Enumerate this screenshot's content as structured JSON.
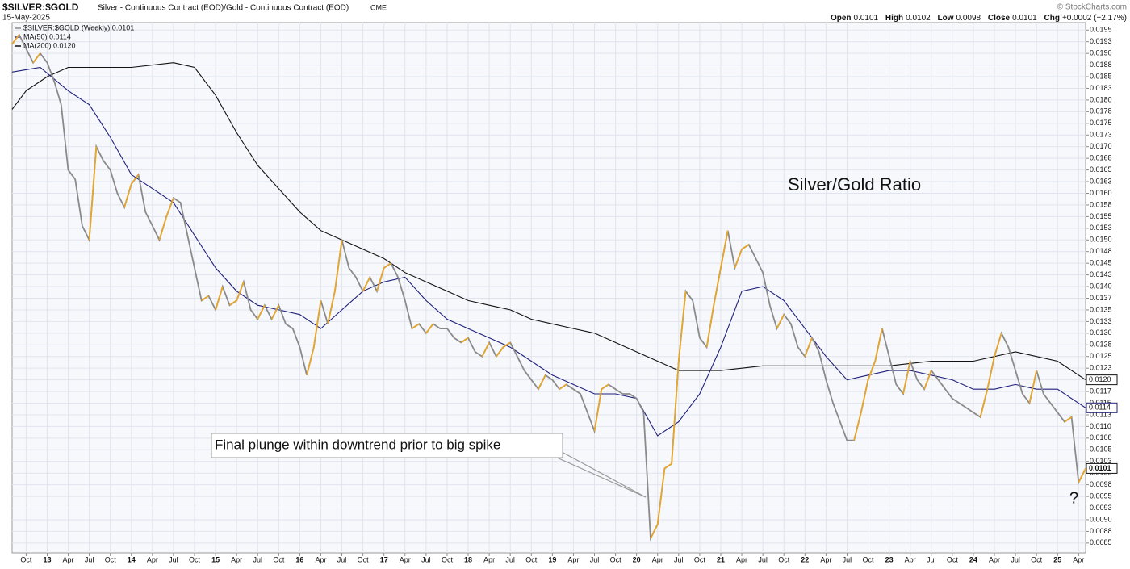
{
  "header": {
    "symbol": "$SILVER:$GOLD",
    "description": "Silver - Continuous Contract (EOD)/Gold - Continuous Contract (EOD)",
    "exchange": "CME",
    "date": "15-May-2025",
    "credit": "© StockCharts.com",
    "ohlc": [
      {
        "label": "Open",
        "value": "0.0101"
      },
      {
        "label": "High",
        "value": "0.0102"
      },
      {
        "label": "Low",
        "value": "0.0098"
      },
      {
        "label": "Close",
        "value": "0.0101"
      },
      {
        "label": "Chg",
        "value": "+0.0002 (+2.17%)"
      }
    ]
  },
  "chart_data": {
    "type": "line",
    "title": "Silver/Gold Ratio",
    "annotations": [
      "Final plunge within downtrend prior to big spike",
      "?"
    ],
    "xlim": [
      "2012-08",
      "2025-05"
    ],
    "ylim": [
      0.00829,
      0.01966
    ],
    "grid": true,
    "up_color": "#e8a628",
    "xticks": [
      {
        "value": "2012-10",
        "label": "Oct"
      },
      {
        "value": "2013-01",
        "label": "13"
      },
      {
        "value": "2013-04",
        "label": "Apr"
      },
      {
        "value": "2013-07",
        "label": "Jul"
      },
      {
        "value": "2013-10",
        "label": "Oct"
      },
      {
        "value": "2014-01",
        "label": "14"
      },
      {
        "value": "2014-04",
        "label": "Apr"
      },
      {
        "value": "2014-07",
        "label": "Jul"
      },
      {
        "value": "2014-10",
        "label": "Oct"
      },
      {
        "value": "2015-01",
        "label": "15"
      },
      {
        "value": "2015-04",
        "label": "Apr"
      },
      {
        "value": "2015-07",
        "label": "Jul"
      },
      {
        "value": "2015-10",
        "label": "Oct"
      },
      {
        "value": "2016-01",
        "label": "16"
      },
      {
        "value": "2016-04",
        "label": "Apr"
      },
      {
        "value": "2016-07",
        "label": "Jul"
      },
      {
        "value": "2016-10",
        "label": "Oct"
      },
      {
        "value": "2017-01",
        "label": "17"
      },
      {
        "value": "2017-04",
        "label": "Apr"
      },
      {
        "value": "2017-07",
        "label": "Jul"
      },
      {
        "value": "2017-10",
        "label": "Oct"
      },
      {
        "value": "2018-01",
        "label": "18"
      },
      {
        "value": "2018-04",
        "label": "Apr"
      },
      {
        "value": "2018-07",
        "label": "Jul"
      },
      {
        "value": "2018-10",
        "label": "Oct"
      },
      {
        "value": "2019-01",
        "label": "19"
      },
      {
        "value": "2019-04",
        "label": "Apr"
      },
      {
        "value": "2019-07",
        "label": "Jul"
      },
      {
        "value": "2019-10",
        "label": "Oct"
      },
      {
        "value": "2020-01",
        "label": "20"
      },
      {
        "value": "2020-04",
        "label": "Apr"
      },
      {
        "value": "2020-07",
        "label": "Jul"
      },
      {
        "value": "2020-10",
        "label": "Oct"
      },
      {
        "value": "2021-01",
        "label": "21"
      },
      {
        "value": "2021-04",
        "label": "Apr"
      },
      {
        "value": "2021-07",
        "label": "Jul"
      },
      {
        "value": "2021-10",
        "label": "Oct"
      },
      {
        "value": "2022-01",
        "label": "22"
      },
      {
        "value": "2022-04",
        "label": "Apr"
      },
      {
        "value": "2022-07",
        "label": "Jul"
      },
      {
        "value": "2022-10",
        "label": "Oct"
      },
      {
        "value": "2023-01",
        "label": "23"
      },
      {
        "value": "2023-04",
        "label": "Apr"
      },
      {
        "value": "2023-07",
        "label": "Jul"
      },
      {
        "value": "2023-10",
        "label": "Oct"
      },
      {
        "value": "2024-01",
        "label": "24"
      },
      {
        "value": "2024-04",
        "label": "Apr"
      },
      {
        "value": "2024-07",
        "label": "Jul"
      },
      {
        "value": "2024-10",
        "label": "Oct"
      },
      {
        "value": "2025-01",
        "label": "25"
      },
      {
        "value": "2025-04",
        "label": "Apr"
      }
    ],
    "yticks": [
      {
        "value": 0.0195,
        "label": "0.0195"
      },
      {
        "value": 0.01925,
        "label": "0.0193"
      },
      {
        "value": 0.019,
        "label": "0.0190"
      },
      {
        "value": 0.01875,
        "label": "0.0188"
      },
      {
        "value": 0.0185,
        "label": "0.0185"
      },
      {
        "value": 0.01825,
        "label": "0.0183"
      },
      {
        "value": 0.018,
        "label": "0.0180"
      },
      {
        "value": 0.01775,
        "label": "0.0178"
      },
      {
        "value": 0.0175,
        "label": "0.0175"
      },
      {
        "value": 0.01725,
        "label": "0.0173"
      },
      {
        "value": 0.017,
        "label": "0.0170"
      },
      {
        "value": 0.01675,
        "label": "0.0168"
      },
      {
        "value": 0.0165,
        "label": "0.0165"
      },
      {
        "value": 0.01625,
        "label": "0.0163"
      },
      {
        "value": 0.016,
        "label": "0.0160"
      },
      {
        "value": 0.01575,
        "label": "0.0158"
      },
      {
        "value": 0.0155,
        "label": "0.0155"
      },
      {
        "value": 0.01525,
        "label": "0.0153"
      },
      {
        "value": 0.015,
        "label": "0.0150"
      },
      {
        "value": 0.01475,
        "label": "0.0148"
      },
      {
        "value": 0.0145,
        "label": "0.0145"
      },
      {
        "value": 0.01425,
        "label": "0.0143"
      },
      {
        "value": 0.014,
        "label": "0.0140"
      },
      {
        "value": 0.01375,
        "label": "0.0137"
      },
      {
        "value": 0.0135,
        "label": "0.0135"
      },
      {
        "value": 0.01325,
        "label": "0.0133"
      },
      {
        "value": 0.013,
        "label": "0.0130"
      },
      {
        "value": 0.01275,
        "label": "0.0128"
      },
      {
        "value": 0.0125,
        "label": "0.0125"
      },
      {
        "value": 0.01225,
        "label": "0.0123"
      },
      {
        "value": 0.012,
        "label": "0.0120"
      },
      {
        "value": 0.01175,
        "label": "0.0117"
      },
      {
        "value": 0.0115,
        "label": "0.0115"
      },
      {
        "value": 0.01125,
        "label": "0.0113"
      },
      {
        "value": 0.011,
        "label": "0.0110"
      },
      {
        "value": 0.01075,
        "label": "0.0108"
      },
      {
        "value": 0.0105,
        "label": "0.0105"
      },
      {
        "value": 0.01025,
        "label": "0.0103"
      },
      {
        "value": 0.01,
        "label": "0.0100"
      },
      {
        "value": 0.00975,
        "label": "0.0098"
      },
      {
        "value": 0.0095,
        "label": "0.0095"
      },
      {
        "value": 0.00925,
        "label": "0.0093"
      },
      {
        "value": 0.009,
        "label": "0.0090"
      },
      {
        "value": 0.00875,
        "label": "0.0088"
      },
      {
        "value": 0.0085,
        "label": "0.0085"
      }
    ],
    "series": [
      {
        "name": "$SILVER:$GOLD (Weekly) 0.0101",
        "color": "#8a8a8a",
        "last_label": "0.0101",
        "x": [
          "2012-08",
          "2012-09",
          "2012-10",
          "2012-11",
          "2012-12",
          "2013-01",
          "2013-02",
          "2013-03",
          "2013-04",
          "2013-05",
          "2013-06",
          "2013-07",
          "2013-08",
          "2013-09",
          "2013-10",
          "2013-11",
          "2013-12",
          "2014-01",
          "2014-02",
          "2014-03",
          "2014-04",
          "2014-05",
          "2014-06",
          "2014-07",
          "2014-08",
          "2014-09",
          "2014-10",
          "2014-11",
          "2014-12",
          "2015-01",
          "2015-02",
          "2015-03",
          "2015-04",
          "2015-05",
          "2015-06",
          "2015-07",
          "2015-08",
          "2015-09",
          "2015-10",
          "2015-11",
          "2015-12",
          "2016-01",
          "2016-02",
          "2016-03",
          "2016-04",
          "2016-05",
          "2016-06",
          "2016-07",
          "2016-08",
          "2016-09",
          "2016-10",
          "2016-11",
          "2016-12",
          "2017-01",
          "2017-02",
          "2017-03",
          "2017-04",
          "2017-05",
          "2017-06",
          "2017-07",
          "2017-08",
          "2017-09",
          "2017-10",
          "2017-11",
          "2017-12",
          "2018-01",
          "2018-02",
          "2018-03",
          "2018-04",
          "2018-05",
          "2018-06",
          "2018-07",
          "2018-08",
          "2018-09",
          "2018-10",
          "2018-11",
          "2018-12",
          "2019-01",
          "2019-02",
          "2019-03",
          "2019-04",
          "2019-05",
          "2019-06",
          "2019-07",
          "2019-08",
          "2019-09",
          "2019-10",
          "2019-11",
          "2019-12",
          "2020-01",
          "2020-02",
          "2020-03",
          "2020-04",
          "2020-05",
          "2020-06",
          "2020-07",
          "2020-08",
          "2020-09",
          "2020-10",
          "2020-11",
          "2020-12",
          "2021-01",
          "2021-02",
          "2021-03",
          "2021-04",
          "2021-05",
          "2021-06",
          "2021-07",
          "2021-08",
          "2021-09",
          "2021-10",
          "2021-11",
          "2021-12",
          "2022-01",
          "2022-02",
          "2022-03",
          "2022-04",
          "2022-05",
          "2022-06",
          "2022-07",
          "2022-08",
          "2022-09",
          "2022-10",
          "2022-11",
          "2022-12",
          "2023-01",
          "2023-02",
          "2023-03",
          "2023-04",
          "2023-05",
          "2023-06",
          "2023-07",
          "2023-08",
          "2023-09",
          "2023-10",
          "2023-11",
          "2023-12",
          "2024-01",
          "2024-02",
          "2024-03",
          "2024-04",
          "2024-05",
          "2024-06",
          "2024-07",
          "2024-08",
          "2024-09",
          "2024-10",
          "2024-11",
          "2024-12",
          "2025-01",
          "2025-02",
          "2025-03",
          "2025-04",
          "2025-05"
        ],
        "values": [
          0.0192,
          0.0194,
          0.0191,
          0.0188,
          0.019,
          0.0188,
          0.0184,
          0.0179,
          0.0165,
          0.0163,
          0.0153,
          0.015,
          0.017,
          0.0167,
          0.0165,
          0.016,
          0.0157,
          0.0162,
          0.0164,
          0.0156,
          0.0153,
          0.015,
          0.0155,
          0.0159,
          0.0158,
          0.0151,
          0.0144,
          0.0137,
          0.0138,
          0.0135,
          0.014,
          0.0136,
          0.0137,
          0.0141,
          0.0135,
          0.0133,
          0.0136,
          0.0133,
          0.0136,
          0.0132,
          0.0131,
          0.0127,
          0.0121,
          0.0127,
          0.0137,
          0.0132,
          0.0139,
          0.015,
          0.0144,
          0.0142,
          0.0139,
          0.0142,
          0.0139,
          0.0144,
          0.0145,
          0.0142,
          0.0137,
          0.0131,
          0.0132,
          0.013,
          0.0132,
          0.0131,
          0.0131,
          0.0129,
          0.0128,
          0.0129,
          0.0126,
          0.0125,
          0.0128,
          0.0125,
          0.0127,
          0.0128,
          0.0125,
          0.0122,
          0.012,
          0.0118,
          0.0121,
          0.012,
          0.0118,
          0.0119,
          0.0118,
          0.0117,
          0.0113,
          0.0109,
          0.0118,
          0.0119,
          0.0118,
          0.0117,
          0.0117,
          0.0116,
          0.0113,
          0.0086,
          0.0089,
          0.0101,
          0.0102,
          0.0124,
          0.0139,
          0.0137,
          0.0129,
          0.0127,
          0.0136,
          0.0144,
          0.0152,
          0.0144,
          0.0148,
          0.0149,
          0.0146,
          0.0143,
          0.0136,
          0.0131,
          0.0134,
          0.0132,
          0.0127,
          0.0125,
          0.0129,
          0.0126,
          0.012,
          0.0115,
          0.0111,
          0.0107,
          0.0107,
          0.0113,
          0.012,
          0.0124,
          0.0131,
          0.0125,
          0.0119,
          0.0117,
          0.0124,
          0.012,
          0.0118,
          0.0122,
          0.012,
          0.0118,
          0.0116,
          0.0115,
          0.0114,
          0.0113,
          0.0112,
          0.0118,
          0.0125,
          0.013,
          0.0127,
          0.0122,
          0.0117,
          0.0115,
          0.0122,
          0.0117,
          0.0115,
          0.0113,
          0.0111,
          0.0112,
          0.0098,
          0.0101
        ]
      },
      {
        "name": "MA(50) 0.0114",
        "color": "#1f1f7a",
        "last_label": "0.0114",
        "x": [
          "2012-08",
          "2012-12",
          "2013-04",
          "2013-07",
          "2013-10",
          "2014-01",
          "2014-04",
          "2014-07",
          "2014-10",
          "2015-01",
          "2015-04",
          "2015-07",
          "2015-10",
          "2016-01",
          "2016-04",
          "2016-07",
          "2016-10",
          "2017-01",
          "2017-04",
          "2017-07",
          "2017-10",
          "2018-01",
          "2018-04",
          "2018-07",
          "2018-10",
          "2019-01",
          "2019-04",
          "2019-07",
          "2019-10",
          "2020-01",
          "2020-04",
          "2020-07",
          "2020-10",
          "2021-01",
          "2021-04",
          "2021-07",
          "2021-10",
          "2022-01",
          "2022-04",
          "2022-07",
          "2022-10",
          "2023-01",
          "2023-04",
          "2023-07",
          "2023-10",
          "2024-01",
          "2024-04",
          "2024-07",
          "2024-10",
          "2025-01",
          "2025-05"
        ],
        "values": [
          0.0186,
          0.0187,
          0.0182,
          0.0179,
          0.0172,
          0.0164,
          0.0161,
          0.0158,
          0.0151,
          0.0144,
          0.0139,
          0.0136,
          0.0135,
          0.0134,
          0.0131,
          0.0135,
          0.0139,
          0.0141,
          0.0142,
          0.0137,
          0.0133,
          0.0131,
          0.0129,
          0.0127,
          0.0124,
          0.0121,
          0.0119,
          0.0117,
          0.0117,
          0.0116,
          0.0108,
          0.0111,
          0.0117,
          0.0127,
          0.0139,
          0.014,
          0.0137,
          0.0131,
          0.0125,
          0.012,
          0.0121,
          0.0122,
          0.0122,
          0.0121,
          0.012,
          0.0118,
          0.0118,
          0.0119,
          0.0118,
          0.0118,
          0.0114
        ]
      },
      {
        "name": "MA(200) 0.0120",
        "color": "#111111",
        "last_label": "0.0120",
        "x": [
          "2012-08",
          "2012-10",
          "2013-01",
          "2013-04",
          "2013-07",
          "2014-01",
          "2014-07",
          "2014-10",
          "2015-01",
          "2015-04",
          "2015-07",
          "2015-10",
          "2016-01",
          "2016-04",
          "2016-07",
          "2016-10",
          "2017-01",
          "2017-04",
          "2017-07",
          "2017-10",
          "2018-01",
          "2018-04",
          "2018-07",
          "2018-10",
          "2019-01",
          "2019-04",
          "2019-07",
          "2019-10",
          "2020-01",
          "2020-04",
          "2020-07",
          "2020-10",
          "2021-01",
          "2021-07",
          "2022-01",
          "2022-07",
          "2023-01",
          "2023-07",
          "2024-01",
          "2024-07",
          "2024-10",
          "2025-01",
          "2025-05"
        ],
        "values": [
          0.0178,
          0.0182,
          0.0185,
          0.0187,
          0.0187,
          0.0187,
          0.0188,
          0.0187,
          0.0181,
          0.0173,
          0.0166,
          0.0161,
          0.0156,
          0.0152,
          0.015,
          0.0148,
          0.0146,
          0.0143,
          0.0141,
          0.0139,
          0.0137,
          0.0136,
          0.0135,
          0.0133,
          0.0132,
          0.0131,
          0.013,
          0.0128,
          0.0126,
          0.0124,
          0.0122,
          0.0122,
          0.0122,
          0.0123,
          0.0123,
          0.0123,
          0.0123,
          0.0124,
          0.0124,
          0.0126,
          0.0125,
          0.0124,
          0.012
        ]
      }
    ]
  }
}
